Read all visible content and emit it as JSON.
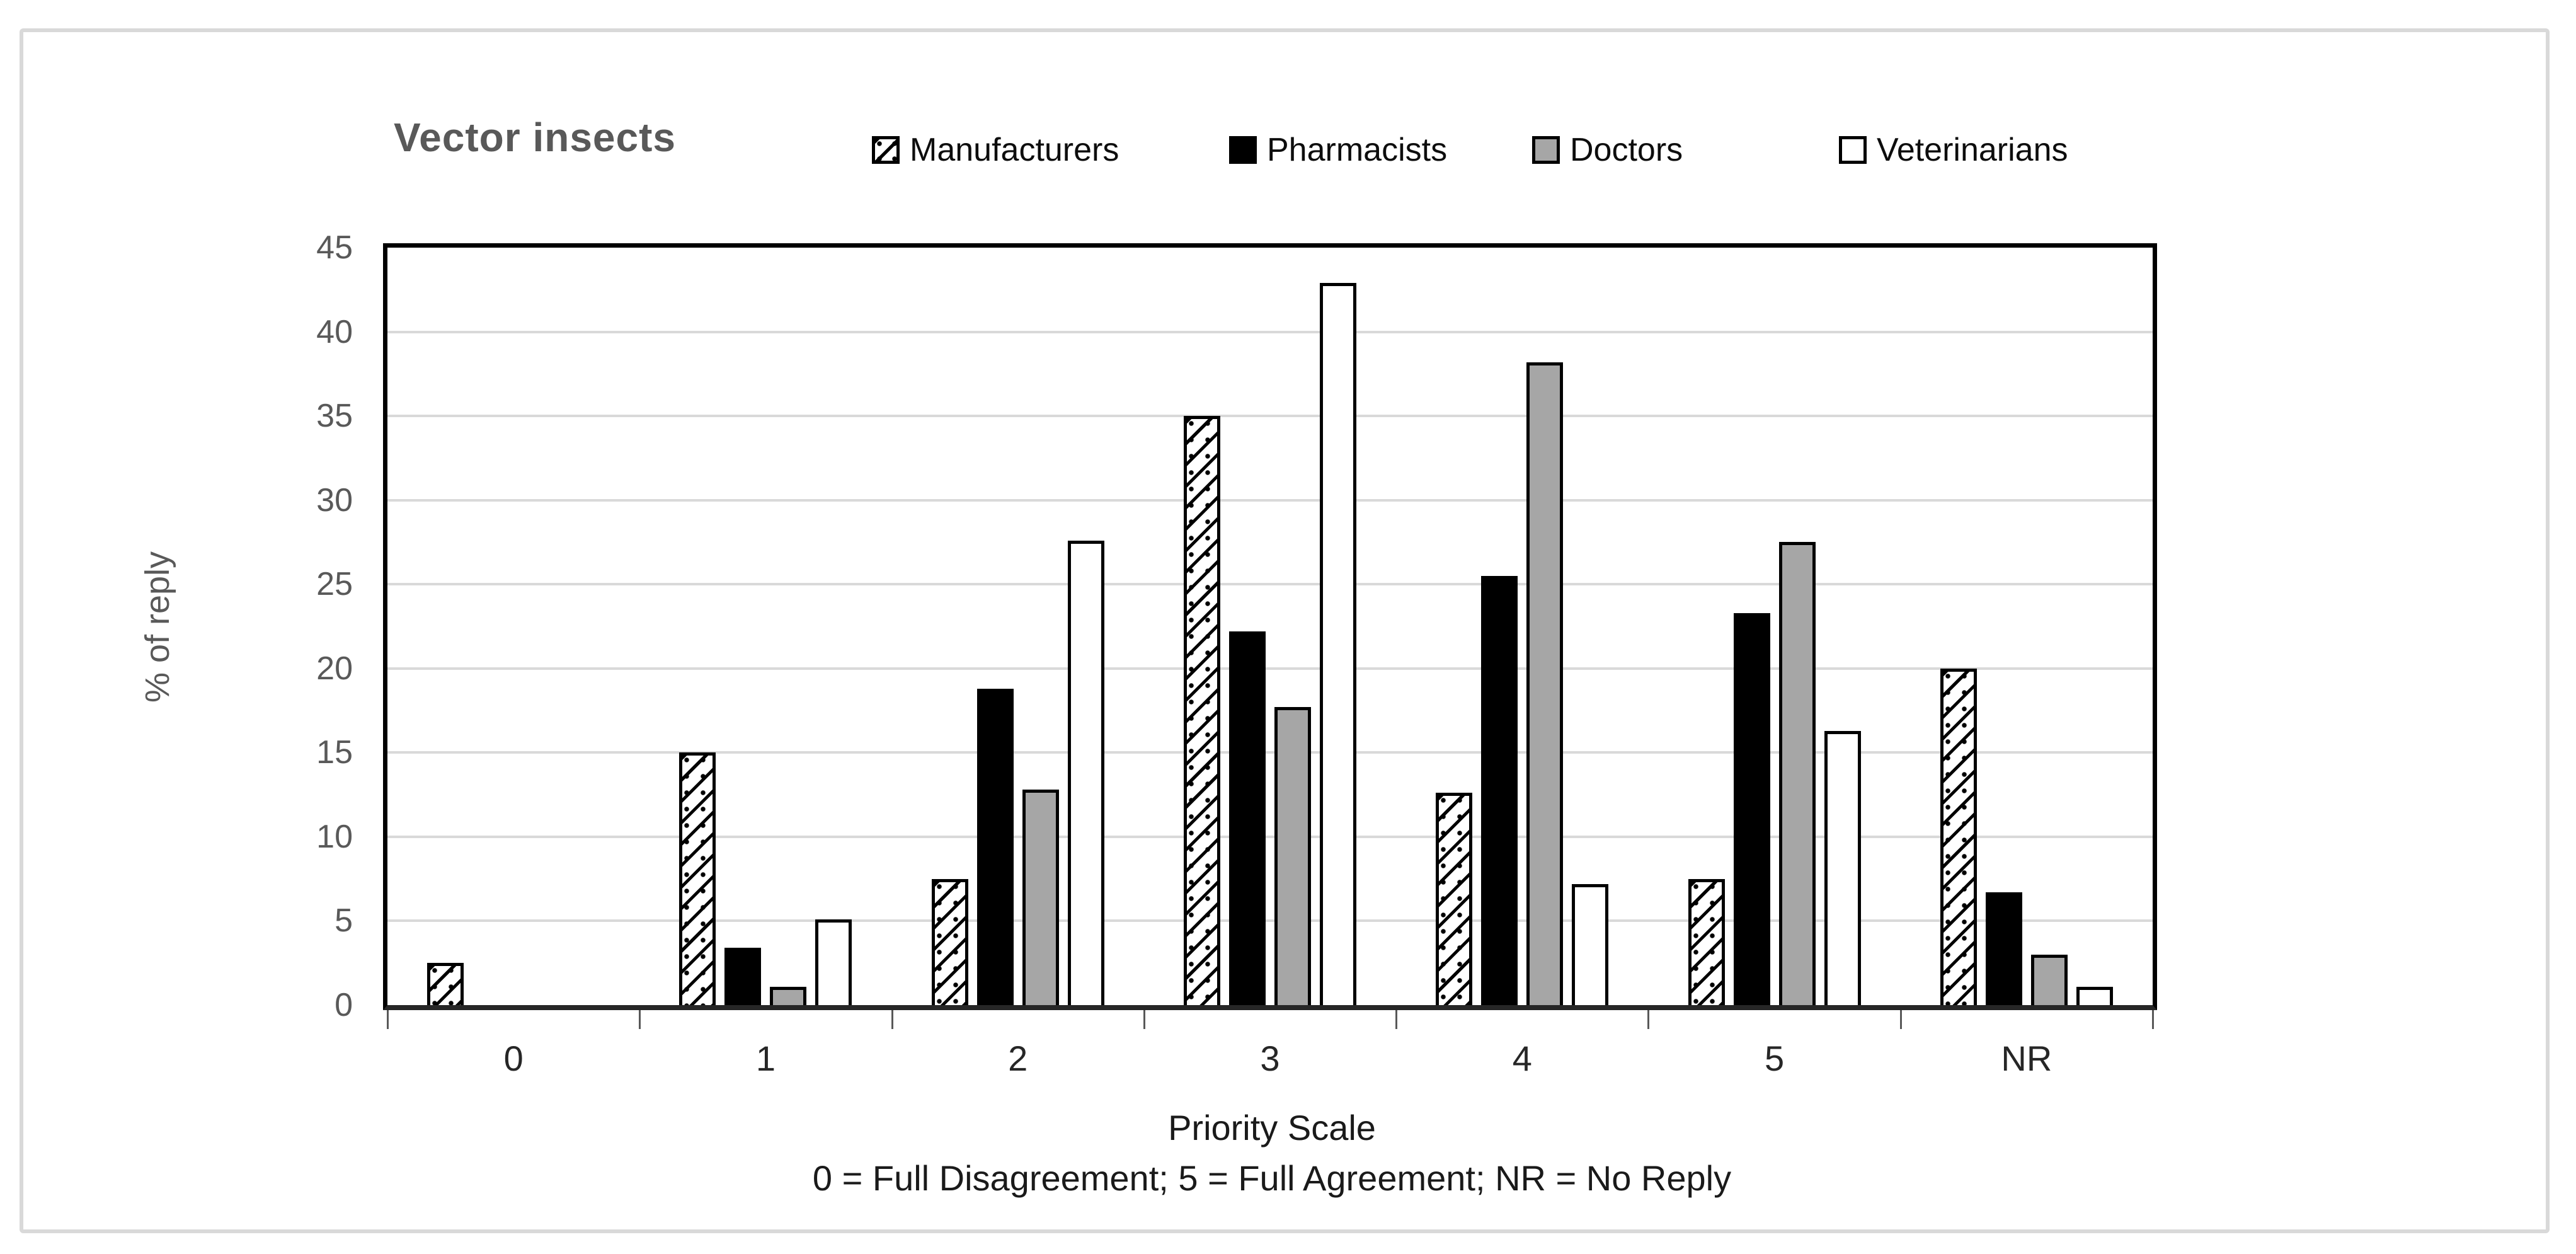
{
  "figure": {
    "title": "Vector insects",
    "y_axis_title": "% of reply",
    "x_axis_title": "Priority Scale",
    "x_axis_footnote": "0 = Full Disagreement; 5 = Full Agreement; NR = No Reply"
  },
  "colors": {
    "title_text": "#595959",
    "axis_tick_text": "#595959",
    "category_text": "#262626",
    "gridline": "#d9d9d9",
    "frame_border": "#d9d9d9",
    "plot_border": "#000000",
    "bar_black": "#000000",
    "bar_gray": "#a6a6a6",
    "bar_white": "#ffffff"
  },
  "chart_data": {
    "type": "bar",
    "title": "Vector insects",
    "xlabel": "Priority Scale",
    "ylabel": "% of reply",
    "footnote": "0 = Full Disagreement; 5 = Full Agreement; NR = No Reply",
    "categories": [
      "0",
      "1",
      "2",
      "3",
      "4",
      "5",
      "NR"
    ],
    "series": [
      {
        "name": "Manufacturers",
        "style": "hatched",
        "values": [
          2.5,
          15.0,
          7.5,
          35.0,
          12.6,
          7.5,
          20.0
        ]
      },
      {
        "name": "Pharmacists",
        "style": "black",
        "values": [
          0,
          3.4,
          18.8,
          22.2,
          25.5,
          23.3,
          6.7
        ]
      },
      {
        "name": "Doctors",
        "style": "gray",
        "values": [
          0,
          1.1,
          12.8,
          17.7,
          38.2,
          27.5,
          3.0
        ]
      },
      {
        "name": "Veterinarians",
        "style": "white",
        "values": [
          0,
          5.1,
          27.6,
          42.9,
          7.2,
          16.3,
          1.1
        ]
      }
    ],
    "ylim": [
      0,
      45
    ],
    "yticks": [
      0,
      5,
      10,
      15,
      20,
      25,
      30,
      35,
      40,
      45
    ],
    "grid": "horizontal",
    "legend_position": "top"
  }
}
